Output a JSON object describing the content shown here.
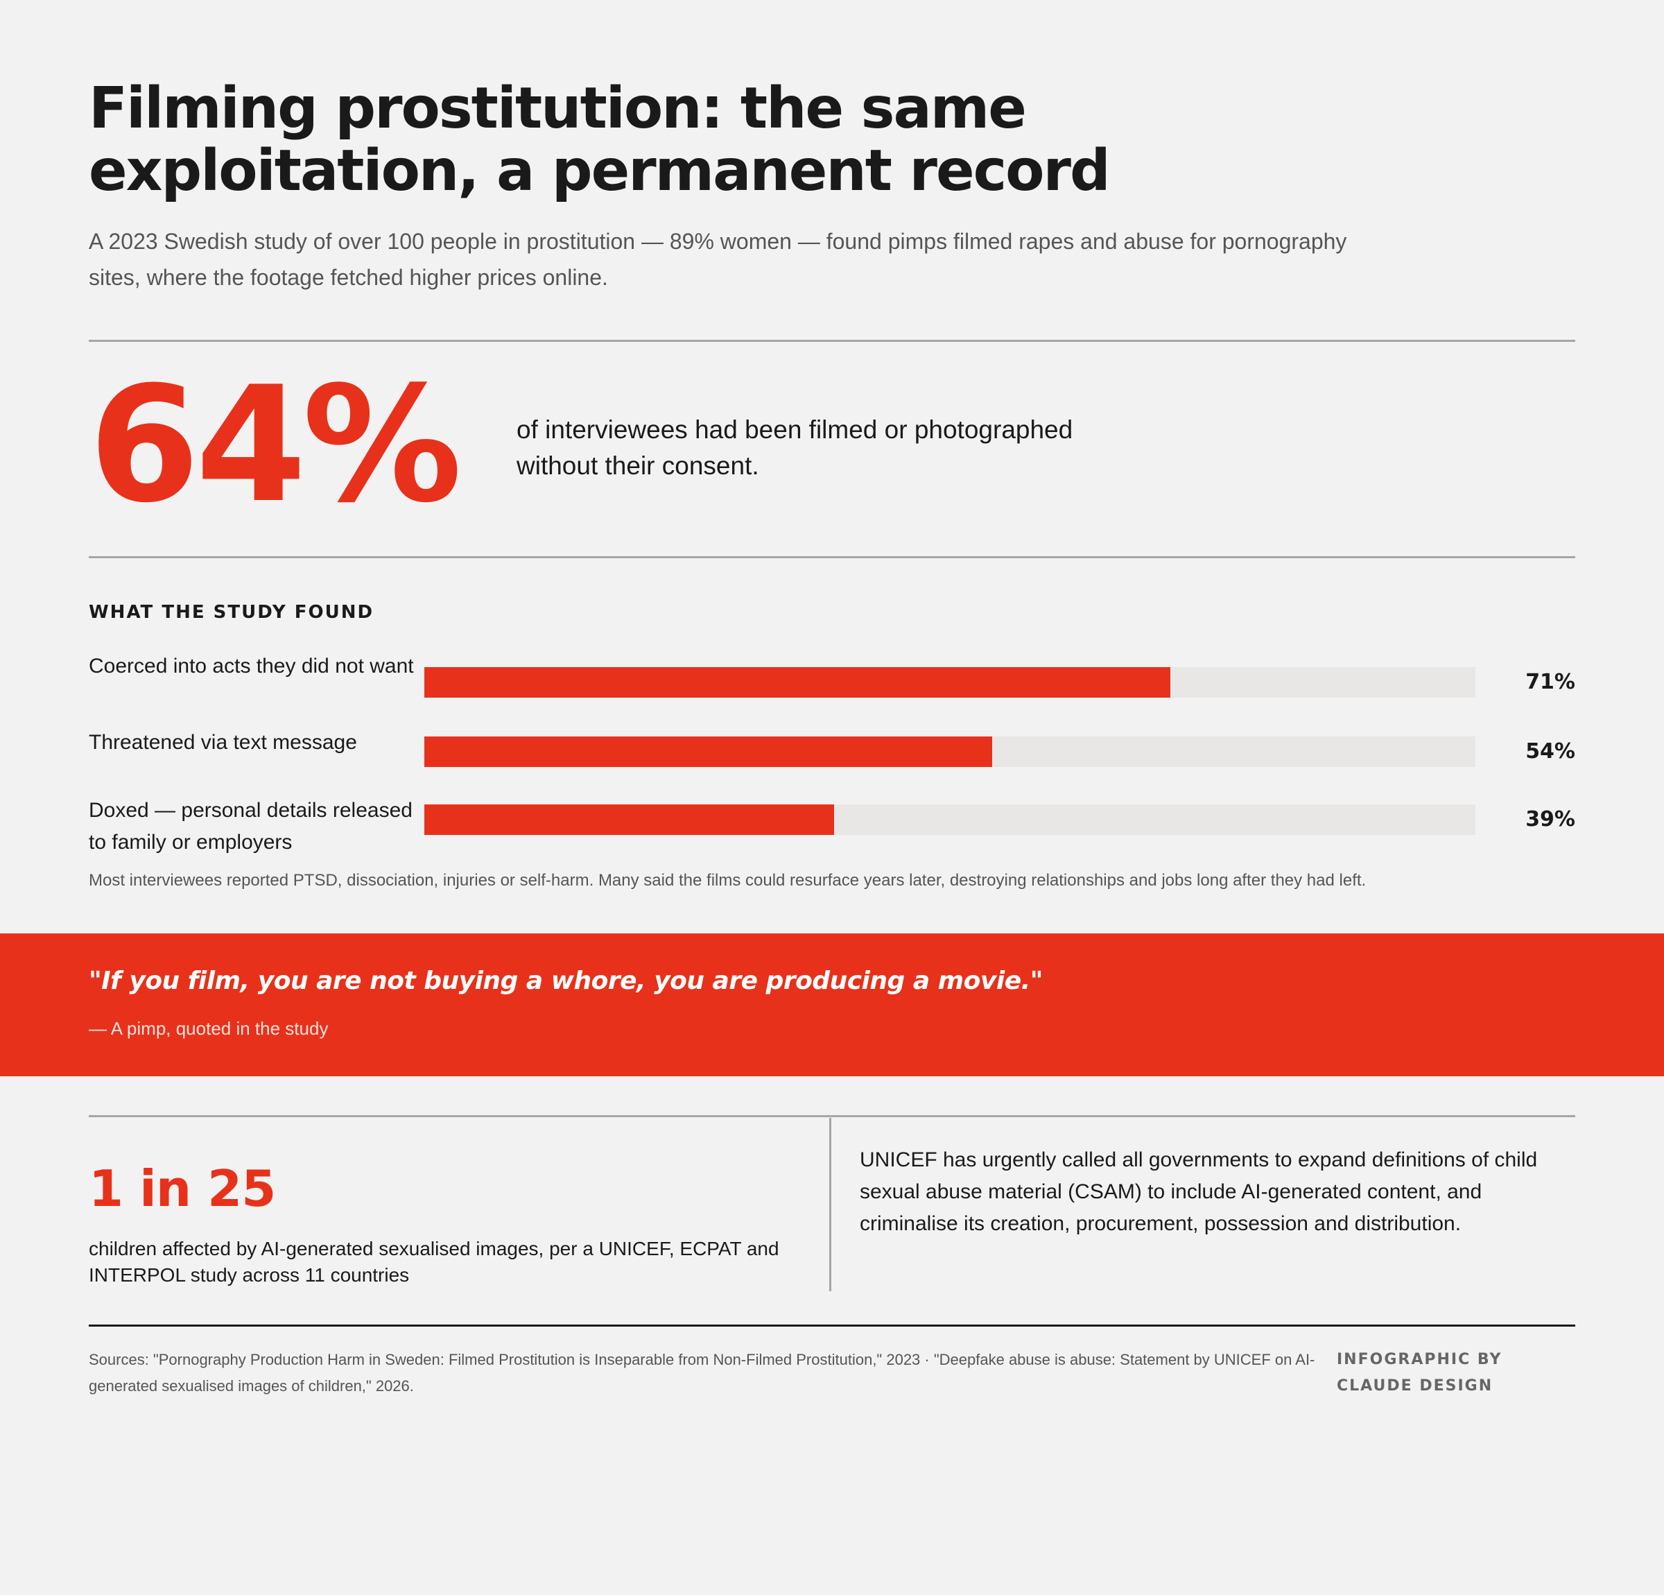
{
  "header": {
    "title": "Filming prostitution: the same exploitation, a permanent record",
    "subtitle": "A 2023 Swedish study of over 100 people in prostitution — 89% women — found pimps filmed rapes and abuse for pornography sites, where the footage fetched higher prices online."
  },
  "headline_stat": {
    "value": "64%",
    "description": "of interviewees had been filmed or photographed without their consent."
  },
  "chart_data": {
    "type": "bar",
    "orientation": "horizontal",
    "title": "WHAT THE STUDY FOUND",
    "categories": [
      "Coerced into acts they did not want",
      "Threatened via text message",
      "Doxed — personal details released to family or employers"
    ],
    "values": [
      71,
      54,
      39
    ],
    "value_labels": [
      "71%",
      "54%",
      "39%"
    ],
    "xlim": [
      0,
      100
    ],
    "grid": false,
    "colors": {
      "fill": "#e8311a",
      "track": "#e9e7e5"
    }
  },
  "note": "Most interviewees reported PTSD, dissociation, injuries or self-harm. Many said the films could resurface years later, destroying relationships and jobs long after they had left.",
  "quote": {
    "text": "\"If you film, you are not buying a whore, you are producing a movie.\"",
    "attribution": "— A pimp, quoted in the study"
  },
  "secondary_stat": {
    "value": "1 in 25",
    "description": "children affected by AI-generated sexualised images, per a UNICEF, ECPAT and INTERPOL study across 11 countries"
  },
  "unicef_statement": "UNICEF has urgently called all governments to expand definitions of child sexual abuse material (CSAM) to include AI-generated content, and criminalise its creation, procurement, possession and distribution.",
  "footer": {
    "sources": "Sources: \"Pornography Production Harm in Sweden: Filmed Prostitution is Inseparable from Non-Filmed Prostitution,\" 2023 · \"Deepfake abuse is abuse: Statement by UNICEF on AI-generated sexualised images of children,\" 2026.",
    "credit": "Infographic by Claude Design"
  },
  "colors": {
    "accent": "#e8311a",
    "background": "#f2f2f2",
    "text": "#1a1a1a",
    "muted": "#555555"
  }
}
